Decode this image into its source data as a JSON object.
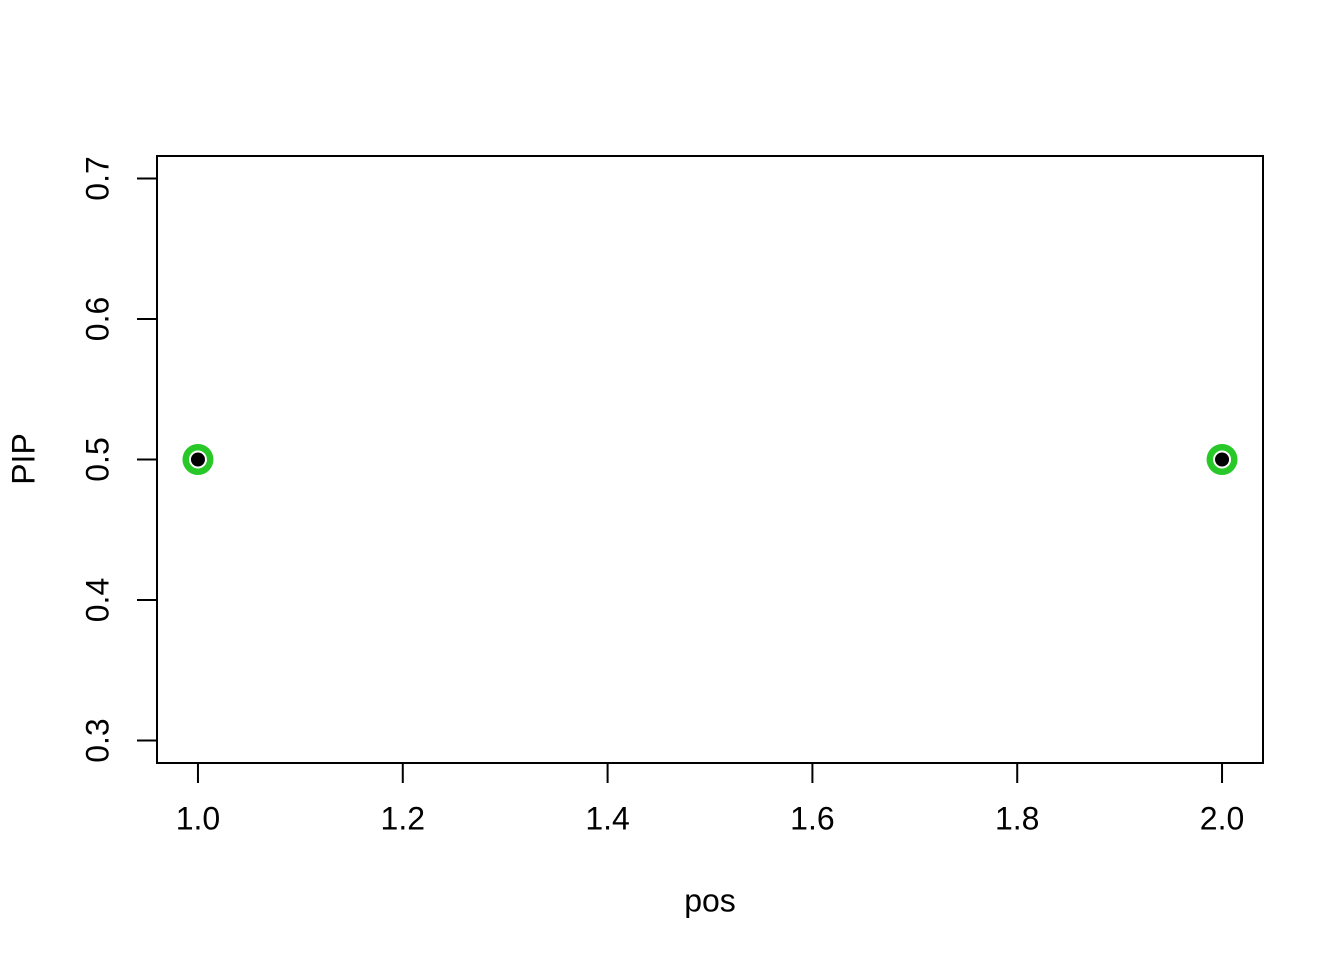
{
  "chart_data": {
    "type": "scatter",
    "title": "",
    "xlabel": "pos",
    "ylabel": "PIP",
    "points": [
      {
        "x": 1.0,
        "y": 0.5
      },
      {
        "x": 2.0,
        "y": 0.5
      }
    ],
    "xlim": [
      0.96,
      2.04
    ],
    "ylim": [
      0.284,
      0.716
    ],
    "xticks": {
      "values": [
        1.0,
        1.2,
        1.4,
        1.6,
        1.8,
        2.0
      ],
      "labels": [
        "1.0",
        "1.2",
        "1.4",
        "1.6",
        "1.8",
        "2.0"
      ]
    },
    "yticks": {
      "values": [
        0.3,
        0.4,
        0.5,
        0.6,
        0.7
      ],
      "labels": [
        "0.3",
        "0.4",
        "0.5",
        "0.6",
        "0.7"
      ]
    },
    "grid": false,
    "legend": null,
    "colors": {
      "marker_ring": "#27C827",
      "marker_gap": "#FFFFFF",
      "marker_core": "#000000",
      "axis": "#000000",
      "background": "#FFFFFF"
    }
  }
}
